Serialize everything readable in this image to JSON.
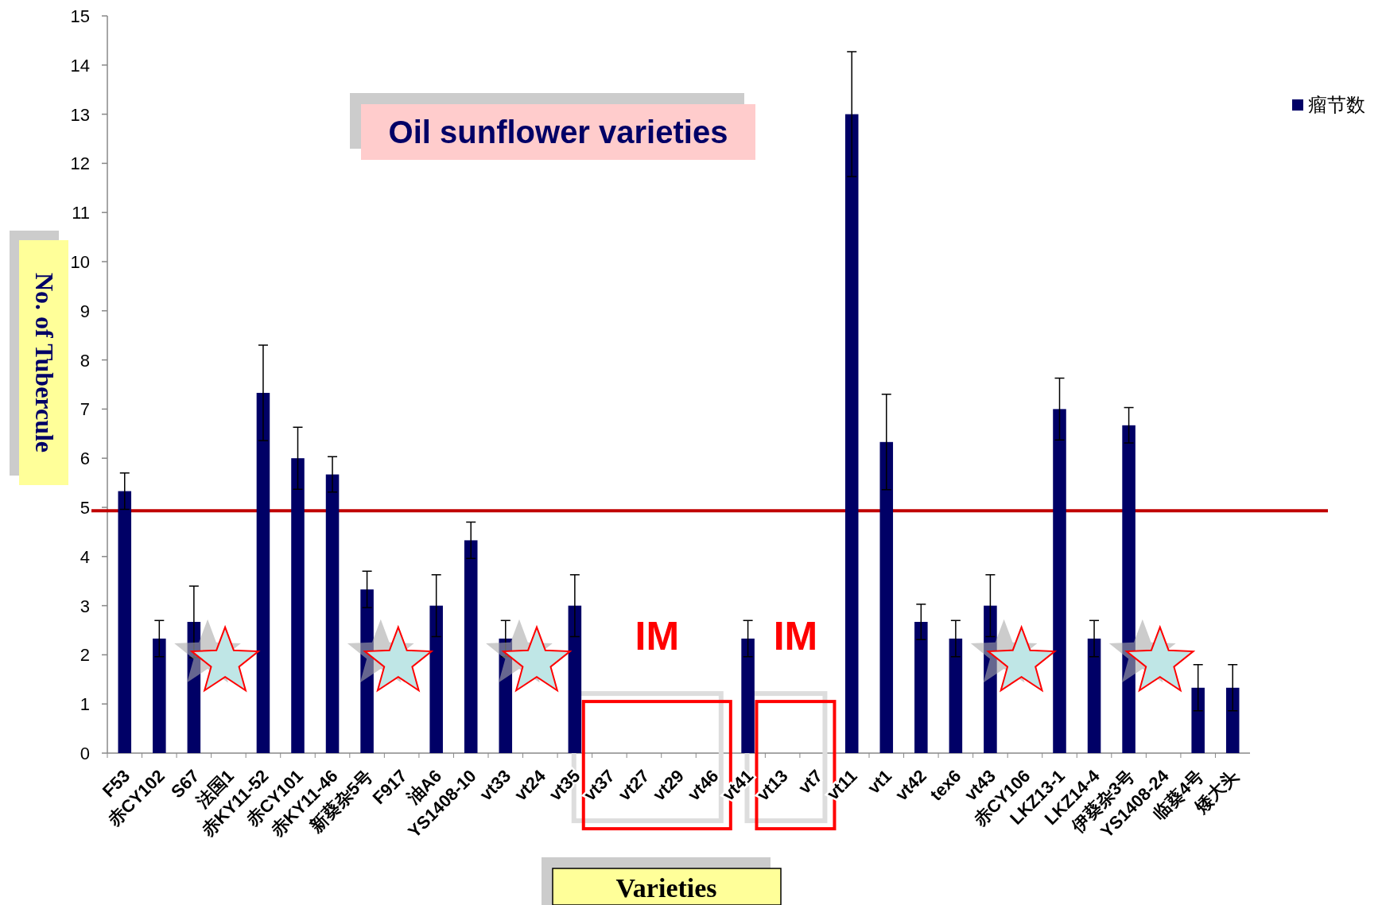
{
  "chart_data": {
    "type": "bar",
    "title": "Oil sunflower varieties",
    "xlabel": "Varieties",
    "ylabel": "No. of Tubercule",
    "categories": [
      "F53",
      "赤CY102",
      "S67",
      "法国1",
      "赤KY11-52",
      "赤CY101",
      "赤KY11-46",
      "新葵杂5号",
      "F917",
      "油A6",
      "YS1408-10",
      "vt33",
      "vt24",
      "vt35",
      "vt37",
      "vt27",
      "vt29",
      "vt46",
      "vt41",
      "vt13",
      "vt7",
      "vt11",
      "vt1",
      "vt42",
      "tex6",
      "vt43",
      "赤CY106",
      "LKZ13-1",
      "LKZ14-4",
      "伊葵杂3号",
      "YS1408-24",
      "临葵4号",
      "矮大头"
    ],
    "series": [
      {
        "name": "瘤节数",
        "color": "#000066",
        "values": [
          5.33,
          2.33,
          2.67,
          0,
          7.33,
          6.0,
          5.67,
          3.33,
          0,
          3.0,
          4.33,
          2.33,
          0,
          3.0,
          0,
          0,
          0,
          0,
          2.33,
          0,
          0,
          13.0,
          6.33,
          2.67,
          2.33,
          3.0,
          0,
          7.0,
          2.33,
          6.67,
          0,
          1.33,
          1.33
        ],
        "errors": [
          0.37,
          0.37,
          0.73,
          null,
          0.97,
          0.63,
          0.36,
          0.37,
          null,
          0.63,
          0.37,
          0.37,
          null,
          0.63,
          null,
          null,
          null,
          null,
          0.37,
          null,
          null,
          1.27,
          0.97,
          0.36,
          0.37,
          0.63,
          null,
          0.63,
          0.37,
          0.36,
          null,
          0.47,
          0.47
        ]
      }
    ],
    "ylim": [
      0,
      15
    ],
    "yticks": [
      0,
      1,
      2,
      3,
      4,
      5,
      6,
      7,
      8,
      9,
      10,
      11,
      12,
      13,
      14,
      15
    ],
    "ref_lines": [
      {
        "axis": "y",
        "value": 4.93,
        "color": "#c00000"
      }
    ],
    "annotations": [
      "IM",
      "IM"
    ],
    "legend": "top right",
    "grid": false
  }
}
